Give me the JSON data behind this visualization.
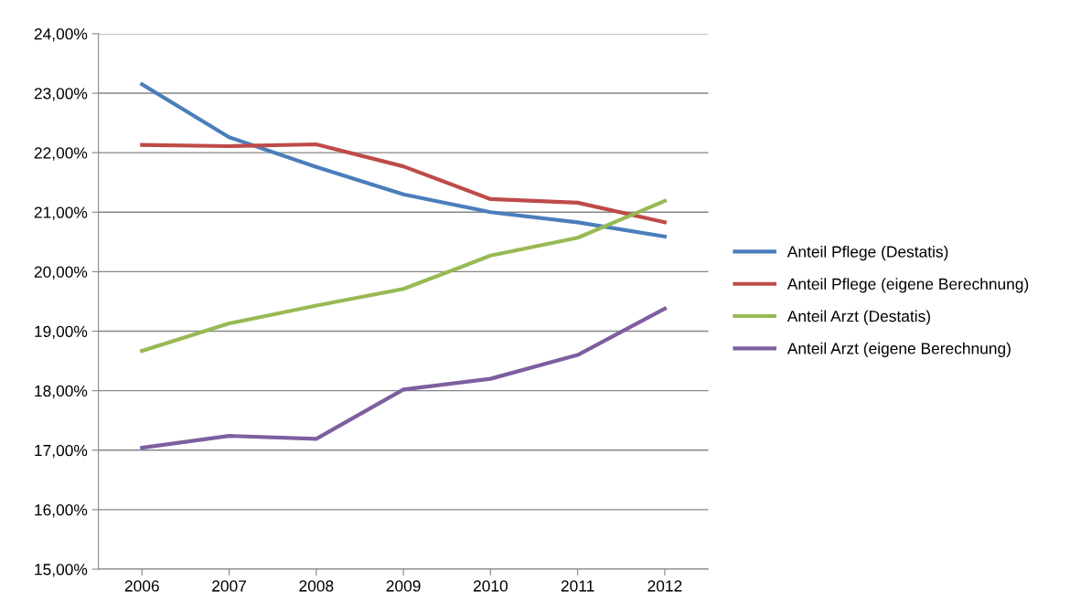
{
  "chart_data": {
    "type": "line",
    "categories": [
      "2006",
      "2007",
      "2008",
      "2009",
      "2010",
      "2011",
      "2012"
    ],
    "series": [
      {
        "name": "Anteil Pflege (Destatis)",
        "color": "#4a7ebb",
        "values": [
          23.15,
          22.26,
          21.76,
          21.3,
          21.0,
          20.83,
          20.59
        ]
      },
      {
        "name": "Anteil Pflege (eigene Berechnung)",
        "color": "#be4b48",
        "values": [
          22.13,
          22.11,
          22.14,
          21.77,
          21.22,
          21.16,
          20.83
        ]
      },
      {
        "name": "Anteil Arzt (Destatis)",
        "color": "#98b954",
        "values": [
          18.67,
          19.13,
          19.43,
          19.71,
          20.27,
          20.57,
          21.19
        ]
      },
      {
        "name": "Anteil Arzt (eigene Berechnung)",
        "color": "#7d5fa0",
        "values": [
          17.04,
          17.24,
          17.19,
          18.02,
          18.2,
          18.6,
          19.38
        ]
      }
    ],
    "ylim": [
      15,
      24
    ],
    "yticks": [
      {
        "value": 15,
        "label": "15,00%"
      },
      {
        "value": 16,
        "label": "16,00%"
      },
      {
        "value": 17,
        "label": "17,00%"
      },
      {
        "value": 18,
        "label": "18,00%"
      },
      {
        "value": 19,
        "label": "19,00%"
      },
      {
        "value": 20,
        "label": "20,00%"
      },
      {
        "value": 21,
        "label": "21,00%"
      },
      {
        "value": 22,
        "label": "22,00%"
      },
      {
        "value": 23,
        "label": "23,00%"
      },
      {
        "value": 24,
        "label": "24,00%"
      }
    ],
    "grid": "y",
    "legend": "right",
    "line_style": "solid"
  }
}
